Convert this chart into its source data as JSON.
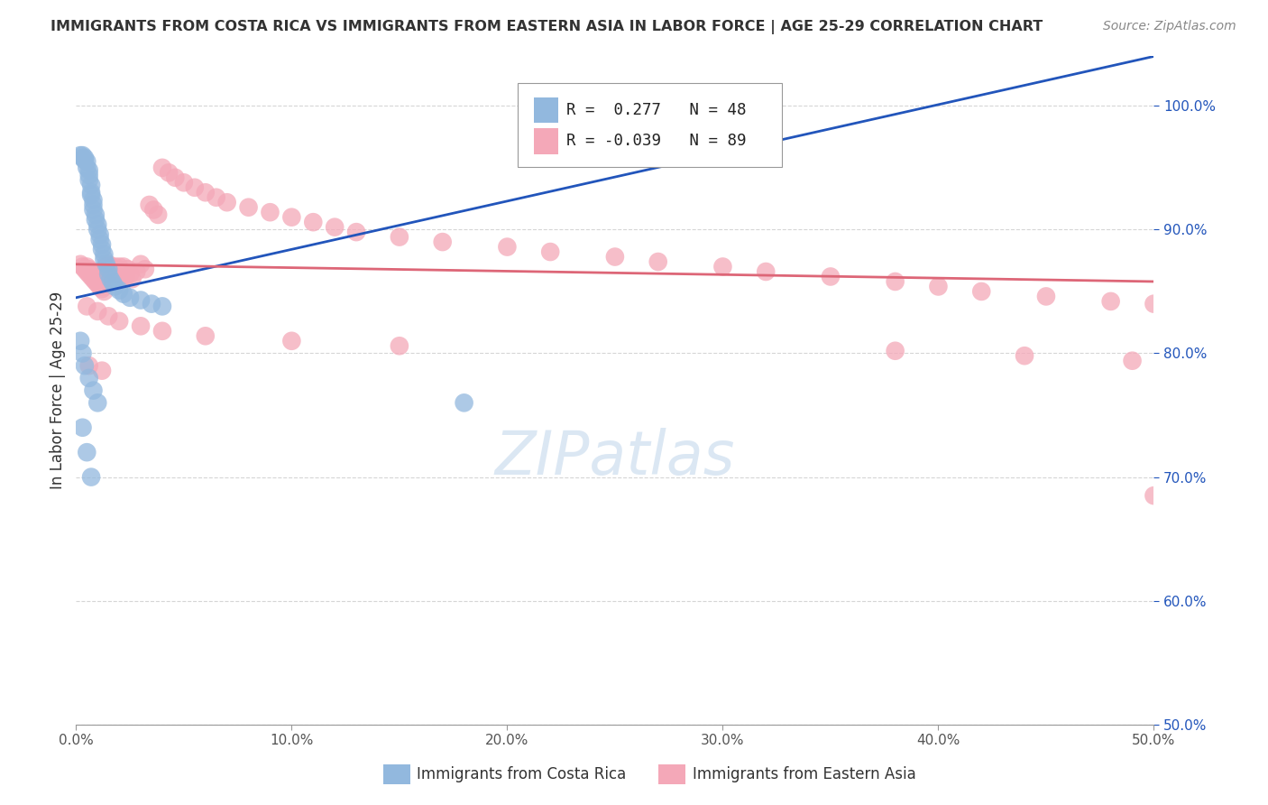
{
  "title": "IMMIGRANTS FROM COSTA RICA VS IMMIGRANTS FROM EASTERN ASIA IN LABOR FORCE | AGE 25-29 CORRELATION CHART",
  "source": "Source: ZipAtlas.com",
  "ylabel": "In Labor Force | Age 25-29",
  "xlim": [
    0.0,
    0.5
  ],
  "ylim": [
    0.5,
    1.04
  ],
  "ytick_labels": [
    "100.0%",
    "90.0%",
    "80.0%",
    "70.0%",
    "60.0%",
    "50.0%"
  ],
  "ytick_values": [
    1.0,
    0.9,
    0.8,
    0.7,
    0.6,
    0.5
  ],
  "xtick_labels": [
    "0.0%",
    "10.0%",
    "20.0%",
    "30.0%",
    "40.0%",
    "50.0%"
  ],
  "xtick_values": [
    0.0,
    0.1,
    0.2,
    0.3,
    0.4,
    0.5
  ],
  "costa_rica_R": 0.277,
  "costa_rica_N": 48,
  "eastern_asia_R": -0.039,
  "eastern_asia_N": 89,
  "costa_rica_color": "#92b8de",
  "eastern_asia_color": "#f4a8b8",
  "costa_rica_line_color": "#2255bb",
  "eastern_asia_line_color": "#dd6677",
  "watermark_color": "#b8d0e8",
  "watermark_text": "ZIPatlas",
  "blue_line_x0": 0.0,
  "blue_line_y0": 0.845,
  "blue_line_x1": 0.5,
  "blue_line_y1": 1.04,
  "pink_line_x0": 0.0,
  "pink_line_y0": 0.872,
  "pink_line_x1": 0.5,
  "pink_line_y1": 0.858,
  "cr_x": [
    0.002,
    0.003,
    0.003,
    0.004,
    0.004,
    0.005,
    0.005,
    0.006,
    0.006,
    0.006,
    0.007,
    0.007,
    0.007,
    0.008,
    0.008,
    0.008,
    0.009,
    0.009,
    0.01,
    0.01,
    0.011,
    0.011,
    0.012,
    0.012,
    0.013,
    0.013,
    0.014,
    0.015,
    0.015,
    0.016,
    0.017,
    0.018,
    0.02,
    0.022,
    0.025,
    0.03,
    0.035,
    0.04,
    0.002,
    0.003,
    0.004,
    0.006,
    0.008,
    0.01,
    0.18,
    0.003,
    0.005,
    0.007
  ],
  "cr_y": [
    0.96,
    0.96,
    0.958,
    0.958,
    0.956,
    0.955,
    0.95,
    0.948,
    0.944,
    0.94,
    0.936,
    0.93,
    0.928,
    0.924,
    0.92,
    0.916,
    0.912,
    0.908,
    0.904,
    0.9,
    0.896,
    0.892,
    0.888,
    0.884,
    0.88,
    0.876,
    0.872,
    0.868,
    0.864,
    0.86,
    0.857,
    0.854,
    0.851,
    0.848,
    0.845,
    0.843,
    0.84,
    0.838,
    0.81,
    0.8,
    0.79,
    0.78,
    0.77,
    0.76,
    0.76,
    0.74,
    0.72,
    0.7
  ],
  "ea_x": [
    0.002,
    0.003,
    0.004,
    0.005,
    0.005,
    0.006,
    0.006,
    0.007,
    0.007,
    0.008,
    0.008,
    0.009,
    0.009,
    0.01,
    0.01,
    0.011,
    0.011,
    0.012,
    0.012,
    0.013,
    0.013,
    0.014,
    0.015,
    0.015,
    0.016,
    0.016,
    0.017,
    0.018,
    0.018,
    0.019,
    0.02,
    0.02,
    0.021,
    0.022,
    0.022,
    0.023,
    0.024,
    0.025,
    0.026,
    0.028,
    0.03,
    0.032,
    0.034,
    0.036,
    0.038,
    0.04,
    0.043,
    0.046,
    0.05,
    0.055,
    0.06,
    0.065,
    0.07,
    0.08,
    0.09,
    0.1,
    0.11,
    0.12,
    0.13,
    0.15,
    0.17,
    0.2,
    0.22,
    0.25,
    0.27,
    0.3,
    0.32,
    0.35,
    0.38,
    0.4,
    0.42,
    0.45,
    0.48,
    0.5,
    0.005,
    0.01,
    0.015,
    0.02,
    0.03,
    0.04,
    0.06,
    0.1,
    0.15,
    0.38,
    0.44,
    0.49,
    0.006,
    0.012,
    0.5
  ],
  "ea_y": [
    0.872,
    0.87,
    0.868,
    0.866,
    0.87,
    0.864,
    0.868,
    0.862,
    0.866,
    0.86,
    0.864,
    0.858,
    0.862,
    0.856,
    0.86,
    0.854,
    0.858,
    0.852,
    0.856,
    0.85,
    0.854,
    0.87,
    0.868,
    0.872,
    0.866,
    0.87,
    0.864,
    0.87,
    0.866,
    0.864,
    0.87,
    0.866,
    0.862,
    0.87,
    0.866,
    0.862,
    0.868,
    0.864,
    0.86,
    0.866,
    0.872,
    0.868,
    0.92,
    0.916,
    0.912,
    0.95,
    0.946,
    0.942,
    0.938,
    0.934,
    0.93,
    0.926,
    0.922,
    0.918,
    0.914,
    0.91,
    0.906,
    0.902,
    0.898,
    0.894,
    0.89,
    0.886,
    0.882,
    0.878,
    0.874,
    0.87,
    0.866,
    0.862,
    0.858,
    0.854,
    0.85,
    0.846,
    0.842,
    0.84,
    0.838,
    0.834,
    0.83,
    0.826,
    0.822,
    0.818,
    0.814,
    0.81,
    0.806,
    0.802,
    0.798,
    0.794,
    0.79,
    0.786,
    0.685
  ]
}
